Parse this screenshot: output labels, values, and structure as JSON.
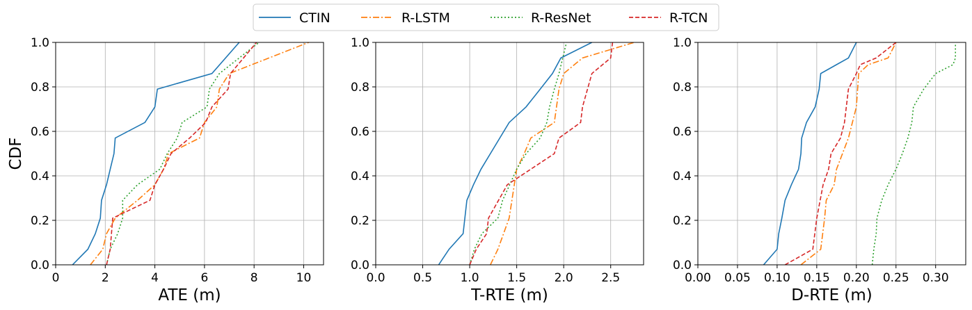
{
  "legend": {
    "position": "top-center",
    "entries": [
      {
        "label": "CTIN",
        "color": "#1f77b4",
        "dash": "solid"
      },
      {
        "label": "R-LSTM",
        "color": "#ff7f0e",
        "dash": "dashdot"
      },
      {
        "label": "R-ResNet",
        "color": "#2ca02c",
        "dash": "dotted"
      },
      {
        "label": "R-TCN",
        "color": "#d62728",
        "dash": "dashed"
      }
    ]
  },
  "chart_data": [
    {
      "type": "line",
      "xlabel": "ATE (m)",
      "ylabel": "CDF",
      "xlim": [
        0,
        10.8
      ],
      "ylim": [
        0,
        1
      ],
      "grid": true,
      "xticks": [
        0,
        2,
        4,
        6,
        8,
        10
      ],
      "xtick_labels": [
        "0",
        "2",
        "4",
        "6",
        "8",
        "10"
      ],
      "yticks": [
        0,
        0.2,
        0.4,
        0.6,
        0.8,
        1.0
      ],
      "ytick_labels": [
        "0.0",
        "0.2",
        "0.4",
        "0.6",
        "0.8",
        "1.0"
      ],
      "series": [
        {
          "name": "CTIN",
          "x": [
            0.68,
            1.3,
            1.6,
            1.8,
            1.85,
            2.05,
            2.2,
            2.35,
            2.4,
            3.6,
            4.0,
            4.1,
            6.3,
            7.4
          ],
          "y": [
            0,
            0.07,
            0.14,
            0.21,
            0.29,
            0.36,
            0.43,
            0.5,
            0.57,
            0.64,
            0.71,
            0.79,
            0.86,
            1.0
          ]
        },
        {
          "name": "R-LSTM",
          "x": [
            1.4,
            1.9,
            2.05,
            2.4,
            3.3,
            4.0,
            4.35,
            4.55,
            5.8,
            6.0,
            6.5,
            6.6,
            7.0,
            10.2
          ],
          "y": [
            0,
            0.07,
            0.14,
            0.21,
            0.29,
            0.36,
            0.43,
            0.5,
            0.57,
            0.64,
            0.71,
            0.79,
            0.86,
            1.0
          ]
        },
        {
          "name": "R-ResNet",
          "x": [
            2.05,
            2.2,
            2.5,
            2.7,
            2.7,
            3.3,
            4.2,
            4.5,
            4.9,
            5.1,
            6.1,
            6.2,
            6.6,
            8.2
          ],
          "y": [
            0,
            0.07,
            0.14,
            0.21,
            0.29,
            0.36,
            0.43,
            0.5,
            0.57,
            0.64,
            0.71,
            0.79,
            0.86,
            1.0
          ]
        },
        {
          "name": "R-TCN",
          "x": [
            2.05,
            2.2,
            2.25,
            2.3,
            3.8,
            4.0,
            4.35,
            4.65,
            5.4,
            6.05,
            6.3,
            6.95,
            7.05,
            8.1
          ],
          "y": [
            0,
            0.07,
            0.14,
            0.21,
            0.29,
            0.36,
            0.43,
            0.5,
            0.57,
            0.64,
            0.71,
            0.79,
            0.86,
            1.0
          ]
        }
      ]
    },
    {
      "type": "line",
      "xlabel": "T-RTE (m)",
      "ylabel": "",
      "xlim": [
        0,
        2.85
      ],
      "ylim": [
        0,
        1
      ],
      "grid": true,
      "xticks": [
        0,
        0.5,
        1.0,
        1.5,
        2.0,
        2.5
      ],
      "xtick_labels": [
        "0.0",
        "0.5",
        "1.0",
        "1.5",
        "2.0",
        "2.5"
      ],
      "yticks": [
        0,
        0.2,
        0.4,
        0.6,
        0.8,
        1.0
      ],
      "ytick_labels": [
        "0.0",
        "0.2",
        "0.4",
        "0.6",
        "0.8",
        "1.0"
      ],
      "series": [
        {
          "name": "CTIN",
          "x": [
            0.67,
            0.78,
            0.93,
            0.97,
            1.04,
            1.12,
            1.22,
            1.42,
            1.6,
            1.75,
            1.88,
            1.97,
            2.3
          ],
          "y": [
            0,
            0.07,
            0.14,
            0.29,
            0.36,
            0.43,
            0.5,
            0.64,
            0.71,
            0.79,
            0.86,
            0.93,
            1.0
          ]
        },
        {
          "name": "R-LSTM",
          "x": [
            1.22,
            1.3,
            1.42,
            1.5,
            1.58,
            1.65,
            1.9,
            1.95,
            2.0,
            2.2,
            2.75
          ],
          "y": [
            0,
            0.07,
            0.21,
            0.43,
            0.5,
            0.57,
            0.64,
            0.79,
            0.86,
            0.93,
            1.0
          ]
        },
        {
          "name": "R-ResNet",
          "x": [
            1.0,
            1.05,
            1.13,
            1.3,
            1.35,
            1.5,
            1.6,
            1.75,
            1.82,
            1.85,
            1.9,
            1.95,
            2.03
          ],
          "y": [
            0,
            0.07,
            0.14,
            0.21,
            0.29,
            0.43,
            0.5,
            0.57,
            0.64,
            0.71,
            0.79,
            0.86,
            1.0
          ]
        },
        {
          "name": "R-TCN",
          "x": [
            1.0,
            1.07,
            1.18,
            1.2,
            1.4,
            1.9,
            1.95,
            2.18,
            2.2,
            2.3,
            2.5,
            2.52
          ],
          "y": [
            0,
            0.07,
            0.14,
            0.21,
            0.36,
            0.5,
            0.57,
            0.64,
            0.71,
            0.86,
            0.93,
            1.0
          ]
        }
      ]
    },
    {
      "type": "line",
      "xlabel": "D-RTE (m)",
      "ylabel": "",
      "xlim": [
        0,
        0.338
      ],
      "ylim": [
        0,
        1
      ],
      "grid": true,
      "xticks": [
        0,
        0.05,
        0.1,
        0.15,
        0.2,
        0.25,
        0.3
      ],
      "xtick_labels": [
        "0.00",
        "0.05",
        "0.10",
        "0.15",
        "0.20",
        "0.25",
        "0.30"
      ],
      "yticks": [
        0,
        0.2,
        0.4,
        0.6,
        0.8,
        1.0
      ],
      "ytick_labels": [
        "0.0",
        "0.2",
        "0.4",
        "0.6",
        "0.8",
        "1.0"
      ],
      "series": [
        {
          "name": "CTIN",
          "x": [
            0.083,
            0.1,
            0.102,
            0.106,
            0.11,
            0.118,
            0.127,
            0.13,
            0.131,
            0.137,
            0.148,
            0.153,
            0.155,
            0.175,
            0.19,
            0.2
          ],
          "y": [
            0,
            0.07,
            0.14,
            0.21,
            0.29,
            0.36,
            0.43,
            0.5,
            0.57,
            0.64,
            0.71,
            0.79,
            0.86,
            0.9,
            0.93,
            1.0
          ]
        },
        {
          "name": "R-LSTM",
          "x": [
            0.13,
            0.155,
            0.16,
            0.162,
            0.172,
            0.175,
            0.19,
            0.2,
            0.203,
            0.215,
            0.24,
            0.25
          ],
          "y": [
            0,
            0.07,
            0.21,
            0.29,
            0.36,
            0.43,
            0.57,
            0.71,
            0.86,
            0.9,
            0.93,
            1.0
          ]
        },
        {
          "name": "R-ResNet",
          "x": [
            0.22,
            0.222,
            0.225,
            0.226,
            0.232,
            0.24,
            0.25,
            0.258,
            0.265,
            0.27,
            0.272,
            0.285,
            0.3,
            0.322,
            0.325,
            0.325
          ],
          "y": [
            0,
            0.07,
            0.14,
            0.21,
            0.29,
            0.36,
            0.43,
            0.5,
            0.57,
            0.64,
            0.71,
            0.79,
            0.86,
            0.9,
            0.93,
            1.0
          ]
        },
        {
          "name": "R-TCN",
          "x": [
            0.11,
            0.145,
            0.15,
            0.158,
            0.165,
            0.168,
            0.18,
            0.185,
            0.19,
            0.2,
            0.205,
            0.225,
            0.25
          ],
          "y": [
            0,
            0.07,
            0.21,
            0.36,
            0.43,
            0.5,
            0.57,
            0.64,
            0.79,
            0.86,
            0.9,
            0.93,
            1.0
          ]
        }
      ]
    }
  ]
}
